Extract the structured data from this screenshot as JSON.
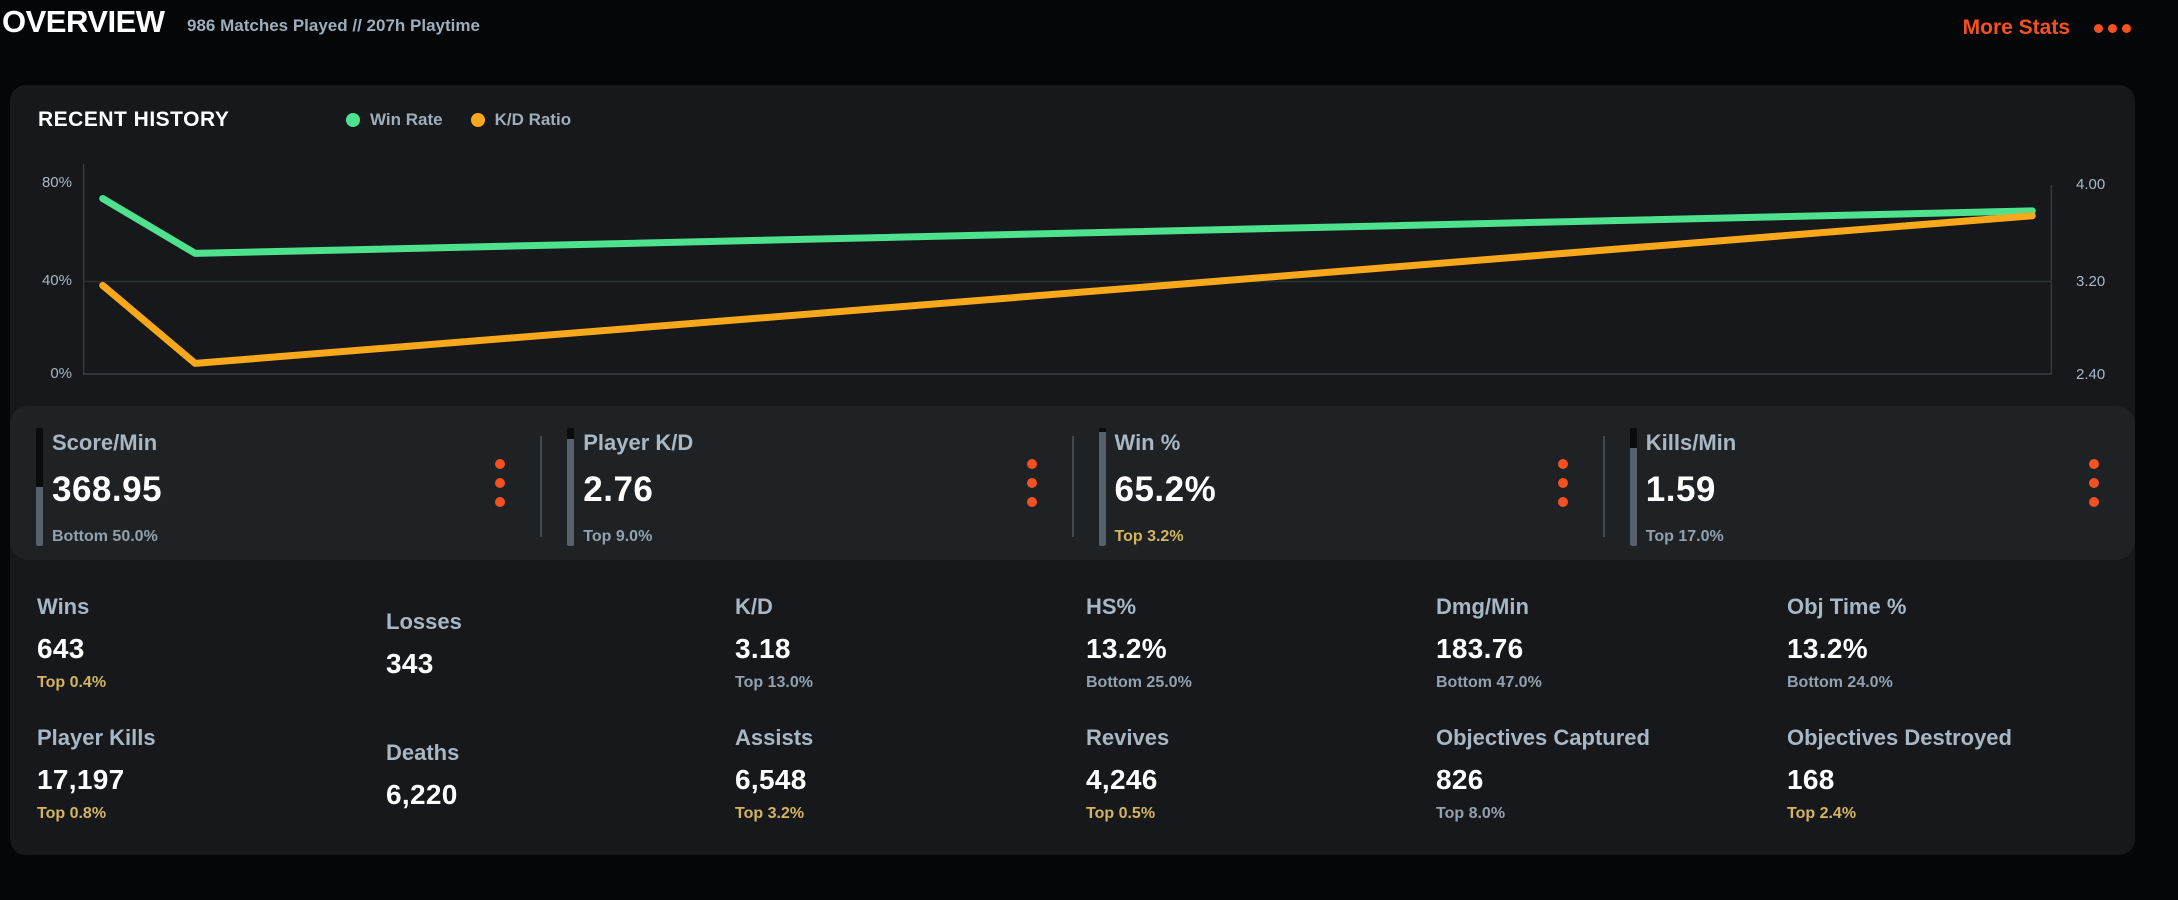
{
  "header": {
    "title": "OVERVIEW",
    "subtitle": "986 Matches Played // 207h Playtime",
    "more_stats_label": "More Stats"
  },
  "colors": {
    "accent_orange": "#f5501f",
    "win_rate_green": "#4fe28e",
    "kd_yellow": "#f8a81a",
    "gold_percentile": "#d4b55e",
    "label_bluegray": "#a9b7c3"
  },
  "recent_history": {
    "title": "RECENT HISTORY",
    "legend": [
      {
        "label": "Win Rate",
        "color": "#4fe28e"
      },
      {
        "label": "K/D Ratio",
        "color": "#f8a81a"
      }
    ]
  },
  "chart_data": {
    "type": "line",
    "title": "RECENT HISTORY",
    "grid": "single horizontal gridline at mid level",
    "legend_position": "top",
    "left_axis": {
      "label": "Win Rate",
      "min": 0,
      "max": 80,
      "ticks": [
        "80%",
        "40%",
        "0%"
      ]
    },
    "right_axis": {
      "label": "K/D Ratio",
      "min": 2.4,
      "max": 4.0,
      "ticks": [
        "4.00",
        "3.20",
        "2.40"
      ]
    },
    "series": [
      {
        "name": "Win Rate",
        "axis": "left",
        "color": "#4fe28e",
        "x": [
          0.01,
          0.057,
          0.99
        ],
        "values": [
          73.5,
          50.5,
          68.3
        ]
      },
      {
        "name": "K/D Ratio",
        "axis": "right",
        "color": "#f8a81a",
        "x": [
          0.01,
          0.057,
          0.99
        ],
        "values": [
          3.15,
          2.49,
          3.74
        ]
      }
    ]
  },
  "summary_cards": [
    {
      "label": "Score/Min",
      "value": "368.95",
      "percentile": "Bottom 50.0%",
      "tier": "normal",
      "meter_fill_pct": 50
    },
    {
      "label": "Player K/D",
      "value": "2.76",
      "percentile": "Top 9.0%",
      "tier": "normal",
      "meter_fill_pct": 91
    },
    {
      "label": "Win %",
      "value": "65.2%",
      "percentile": "Top 3.2%",
      "tier": "gold",
      "meter_fill_pct": 97
    },
    {
      "label": "Kills/Min",
      "value": "1.59",
      "percentile": "Top 17.0%",
      "tier": "normal",
      "meter_fill_pct": 83
    }
  ],
  "stats_grid": {
    "rows": [
      [
        {
          "label": "Wins",
          "value": "643",
          "percentile": "Top 0.4%",
          "tier": "gold"
        },
        {
          "label": "Losses",
          "value": "343",
          "percentile": "",
          "tier": "normal"
        },
        {
          "label": "K/D",
          "value": "3.18",
          "percentile": "Top 13.0%",
          "tier": "normal"
        },
        {
          "label": "HS%",
          "value": "13.2%",
          "percentile": "Bottom 25.0%",
          "tier": "normal"
        },
        {
          "label": "Dmg/Min",
          "value": "183.76",
          "percentile": "Bottom 47.0%",
          "tier": "normal"
        },
        {
          "label": "Obj Time %",
          "value": "13.2%",
          "percentile": "Bottom 24.0%",
          "tier": "normal"
        }
      ],
      [
        {
          "label": "Player Kills",
          "value": "17,197",
          "percentile": "Top 0.8%",
          "tier": "gold"
        },
        {
          "label": "Deaths",
          "value": "6,220",
          "percentile": "",
          "tier": "normal"
        },
        {
          "label": "Assists",
          "value": "6,548",
          "percentile": "Top 3.2%",
          "tier": "gold"
        },
        {
          "label": "Revives",
          "value": "4,246",
          "percentile": "Top 0.5%",
          "tier": "gold"
        },
        {
          "label": "Objectives Captured",
          "value": "826",
          "percentile": "Top 8.0%",
          "tier": "normal"
        },
        {
          "label": "Objectives Destroyed",
          "value": "168",
          "percentile": "Top 2.4%",
          "tier": "gold"
        }
      ]
    ]
  }
}
